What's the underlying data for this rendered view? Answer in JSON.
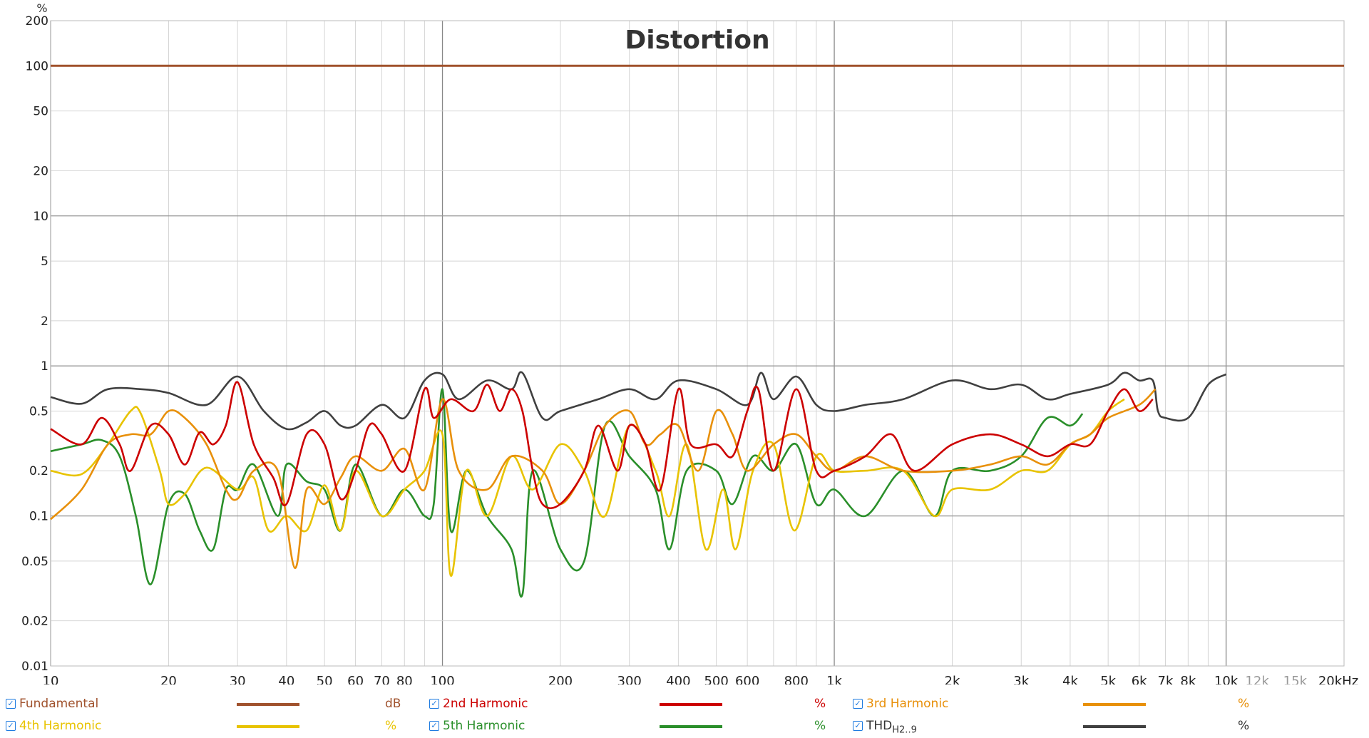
{
  "chart_data": {
    "type": "line",
    "title": "Distortion",
    "ylabel": "%",
    "xlabel": "",
    "xscale": "log",
    "yscale": "log",
    "xlim": [
      10,
      20000
    ],
    "ylim": [
      0.01,
      200
    ],
    "grid": true,
    "x_ticks": [
      {
        "v": 10,
        "label": "10"
      },
      {
        "v": 20,
        "label": "20"
      },
      {
        "v": 30,
        "label": "30"
      },
      {
        "v": 40,
        "label": "40"
      },
      {
        "v": 50,
        "label": "50"
      },
      {
        "v": 60,
        "label": "60"
      },
      {
        "v": 70,
        "label": "70"
      },
      {
        "v": 80,
        "label": "80"
      },
      {
        "v": 100,
        "label": "100"
      },
      {
        "v": 200,
        "label": "200"
      },
      {
        "v": 300,
        "label": "300"
      },
      {
        "v": 400,
        "label": "400"
      },
      {
        "v": 500,
        "label": "500"
      },
      {
        "v": 600,
        "label": "600"
      },
      {
        "v": 800,
        "label": "800"
      },
      {
        "v": 1000,
        "label": "1k"
      },
      {
        "v": 2000,
        "label": "2k"
      },
      {
        "v": 3000,
        "label": "3k"
      },
      {
        "v": 4000,
        "label": "4k"
      },
      {
        "v": 5000,
        "label": "5k"
      },
      {
        "v": 6000,
        "label": "6k"
      },
      {
        "v": 7000,
        "label": "7k"
      },
      {
        "v": 8000,
        "label": "8k"
      },
      {
        "v": 10000,
        "label": "10k"
      },
      {
        "v": 12000,
        "label": "12k",
        "muted": true
      },
      {
        "v": 15000,
        "label": "15k",
        "muted": true
      },
      {
        "v": 20000,
        "label": "20kHz"
      }
    ],
    "y_ticks": [
      {
        "v": 0.01,
        "label": "0.01"
      },
      {
        "v": 0.02,
        "label": "0.02"
      },
      {
        "v": 0.05,
        "label": "0.05"
      },
      {
        "v": 0.1,
        "label": "0.1"
      },
      {
        "v": 0.2,
        "label": "0.2"
      },
      {
        "v": 0.5,
        "label": "0.5"
      },
      {
        "v": 1,
        "label": "1"
      },
      {
        "v": 2,
        "label": "2"
      },
      {
        "v": 5,
        "label": "5"
      },
      {
        "v": 10,
        "label": "10"
      },
      {
        "v": 20,
        "label": "20"
      },
      {
        "v": 50,
        "label": "50"
      },
      {
        "v": 100,
        "label": "100"
      },
      {
        "v": 200,
        "label": "200"
      }
    ],
    "series": [
      {
        "name": "Fundamental",
        "unit": "dB",
        "color": "#a0522d",
        "checked": true,
        "x": [
          10,
          20000
        ],
        "y": [
          100,
          100
        ]
      },
      {
        "name": "2nd Harmonic",
        "unit": "%",
        "color": "#cc0000",
        "checked": true,
        "x": [
          10,
          12,
          13.5,
          15,
          16,
          18,
          20,
          22,
          24,
          26,
          28,
          30,
          33,
          37,
          40,
          45,
          50,
          55,
          60,
          65,
          70,
          80,
          90,
          95,
          105,
          120,
          130,
          140,
          150,
          160,
          170,
          180,
          200,
          230,
          250,
          280,
          300,
          330,
          360,
          400,
          430,
          500,
          550,
          600,
          640,
          700,
          800,
          900,
          1000,
          1200,
          1400,
          1600,
          2000,
          2500,
          3000,
          3500,
          4000,
          4500,
          5000,
          5500,
          6000,
          6500
        ],
        "y": [
          0.38,
          0.3,
          0.45,
          0.3,
          0.2,
          0.4,
          0.35,
          0.22,
          0.36,
          0.3,
          0.4,
          0.78,
          0.3,
          0.18,
          0.12,
          0.35,
          0.3,
          0.13,
          0.2,
          0.4,
          0.35,
          0.2,
          0.7,
          0.45,
          0.6,
          0.5,
          0.75,
          0.5,
          0.7,
          0.5,
          0.2,
          0.12,
          0.12,
          0.2,
          0.4,
          0.2,
          0.4,
          0.3,
          0.15,
          0.7,
          0.3,
          0.3,
          0.25,
          0.5,
          0.7,
          0.2,
          0.7,
          0.2,
          0.2,
          0.25,
          0.35,
          0.2,
          0.3,
          0.35,
          0.3,
          0.25,
          0.3,
          0.3,
          0.5,
          0.7,
          0.5,
          0.6
        ]
      },
      {
        "name": "3rd Harmonic",
        "unit": "%",
        "color": "#e8900a",
        "checked": true,
        "x": [
          10,
          12,
          14,
          16,
          18,
          20,
          22,
          25,
          28,
          30,
          33,
          38,
          42,
          45,
          50,
          55,
          60,
          70,
          80,
          90,
          100,
          110,
          130,
          150,
          180,
          200,
          230,
          260,
          300,
          330,
          360,
          400,
          450,
          500,
          550,
          600,
          700,
          800,
          900,
          1000,
          1200,
          1500,
          2000,
          2500,
          3000,
          3500,
          4000,
          4500,
          5000,
          6000,
          6600
        ],
        "y": [
          0.095,
          0.15,
          0.3,
          0.35,
          0.35,
          0.5,
          0.45,
          0.3,
          0.15,
          0.13,
          0.2,
          0.2,
          0.045,
          0.15,
          0.12,
          0.18,
          0.25,
          0.2,
          0.28,
          0.15,
          0.6,
          0.2,
          0.15,
          0.25,
          0.2,
          0.12,
          0.2,
          0.4,
          0.5,
          0.3,
          0.35,
          0.4,
          0.2,
          0.5,
          0.35,
          0.2,
          0.3,
          0.35,
          0.25,
          0.2,
          0.25,
          0.2,
          0.2,
          0.22,
          0.25,
          0.22,
          0.3,
          0.35,
          0.45,
          0.55,
          0.7
        ]
      },
      {
        "name": "4th Harmonic",
        "unit": "%",
        "color": "#e8c300",
        "checked": true,
        "x": [
          10,
          12,
          14,
          16,
          17,
          19,
          20,
          22,
          25,
          30,
          33,
          36,
          40,
          45,
          50,
          55,
          60,
          70,
          80,
          90,
          100,
          105,
          115,
          130,
          150,
          170,
          200,
          230,
          260,
          300,
          350,
          380,
          420,
          470,
          520,
          560,
          620,
          700,
          790,
          900,
          1000,
          1200,
          1500,
          1800,
          2000,
          2500,
          3000,
          3500,
          4000,
          4500,
          5000,
          5500
        ],
        "y": [
          0.2,
          0.19,
          0.3,
          0.5,
          0.48,
          0.2,
          0.12,
          0.14,
          0.21,
          0.15,
          0.18,
          0.08,
          0.1,
          0.08,
          0.16,
          0.08,
          0.2,
          0.1,
          0.15,
          0.2,
          0.35,
          0.04,
          0.2,
          0.1,
          0.25,
          0.15,
          0.3,
          0.2,
          0.1,
          0.4,
          0.2,
          0.1,
          0.3,
          0.06,
          0.15,
          0.06,
          0.2,
          0.3,
          0.08,
          0.25,
          0.2,
          0.2,
          0.2,
          0.1,
          0.15,
          0.15,
          0.2,
          0.2,
          0.3,
          0.35,
          0.5,
          0.6
        ]
      },
      {
        "name": "5th Harmonic",
        "unit": "%",
        "color": "#2a8f2a",
        "checked": true,
        "x": [
          10,
          12,
          13.5,
          15,
          16.5,
          18,
          20,
          22,
          24,
          26,
          28,
          30,
          33,
          38,
          40,
          45,
          50,
          55,
          60,
          70,
          80,
          90,
          95,
          100,
          105,
          115,
          130,
          150,
          160,
          170,
          200,
          230,
          260,
          300,
          350,
          380,
          420,
          500,
          550,
          620,
          700,
          800,
          900,
          1000,
          1200,
          1500,
          1800,
          2000,
          2500,
          3000,
          3500,
          4000,
          4300
        ],
        "y": [
          0.27,
          0.3,
          0.32,
          0.25,
          0.1,
          0.035,
          0.12,
          0.14,
          0.08,
          0.06,
          0.15,
          0.15,
          0.22,
          0.1,
          0.22,
          0.17,
          0.15,
          0.08,
          0.22,
          0.1,
          0.15,
          0.1,
          0.12,
          0.7,
          0.08,
          0.2,
          0.1,
          0.06,
          0.03,
          0.2,
          0.06,
          0.05,
          0.4,
          0.25,
          0.15,
          0.06,
          0.2,
          0.2,
          0.12,
          0.25,
          0.2,
          0.3,
          0.12,
          0.15,
          0.1,
          0.2,
          0.1,
          0.2,
          0.2,
          0.25,
          0.45,
          0.4,
          0.48
        ]
      },
      {
        "name": "THD",
        "name_sub": "H2..9",
        "unit": "%",
        "color": "#404040",
        "checked": true,
        "x": [
          10,
          12,
          14,
          17,
          20,
          25,
          30,
          35,
          40,
          45,
          50,
          55,
          60,
          70,
          80,
          90,
          100,
          110,
          130,
          150,
          160,
          180,
          200,
          250,
          300,
          350,
          400,
          500,
          600,
          650,
          700,
          800,
          900,
          1000,
          1200,
          1500,
          2000,
          2500,
          3000,
          3500,
          4000,
          5000,
          5500,
          6000,
          6500,
          6700,
          7000,
          8000,
          9000,
          10000
        ],
        "y": [
          0.62,
          0.56,
          0.7,
          0.7,
          0.66,
          0.55,
          0.85,
          0.5,
          0.38,
          0.42,
          0.5,
          0.4,
          0.4,
          0.55,
          0.45,
          0.8,
          0.88,
          0.6,
          0.8,
          0.7,
          0.9,
          0.45,
          0.5,
          0.6,
          0.7,
          0.6,
          0.8,
          0.7,
          0.55,
          0.9,
          0.6,
          0.85,
          0.55,
          0.5,
          0.55,
          0.6,
          0.8,
          0.7,
          0.75,
          0.6,
          0.65,
          0.75,
          0.9,
          0.8,
          0.8,
          0.5,
          0.45,
          0.45,
          0.75,
          0.88
        ]
      }
    ]
  }
}
